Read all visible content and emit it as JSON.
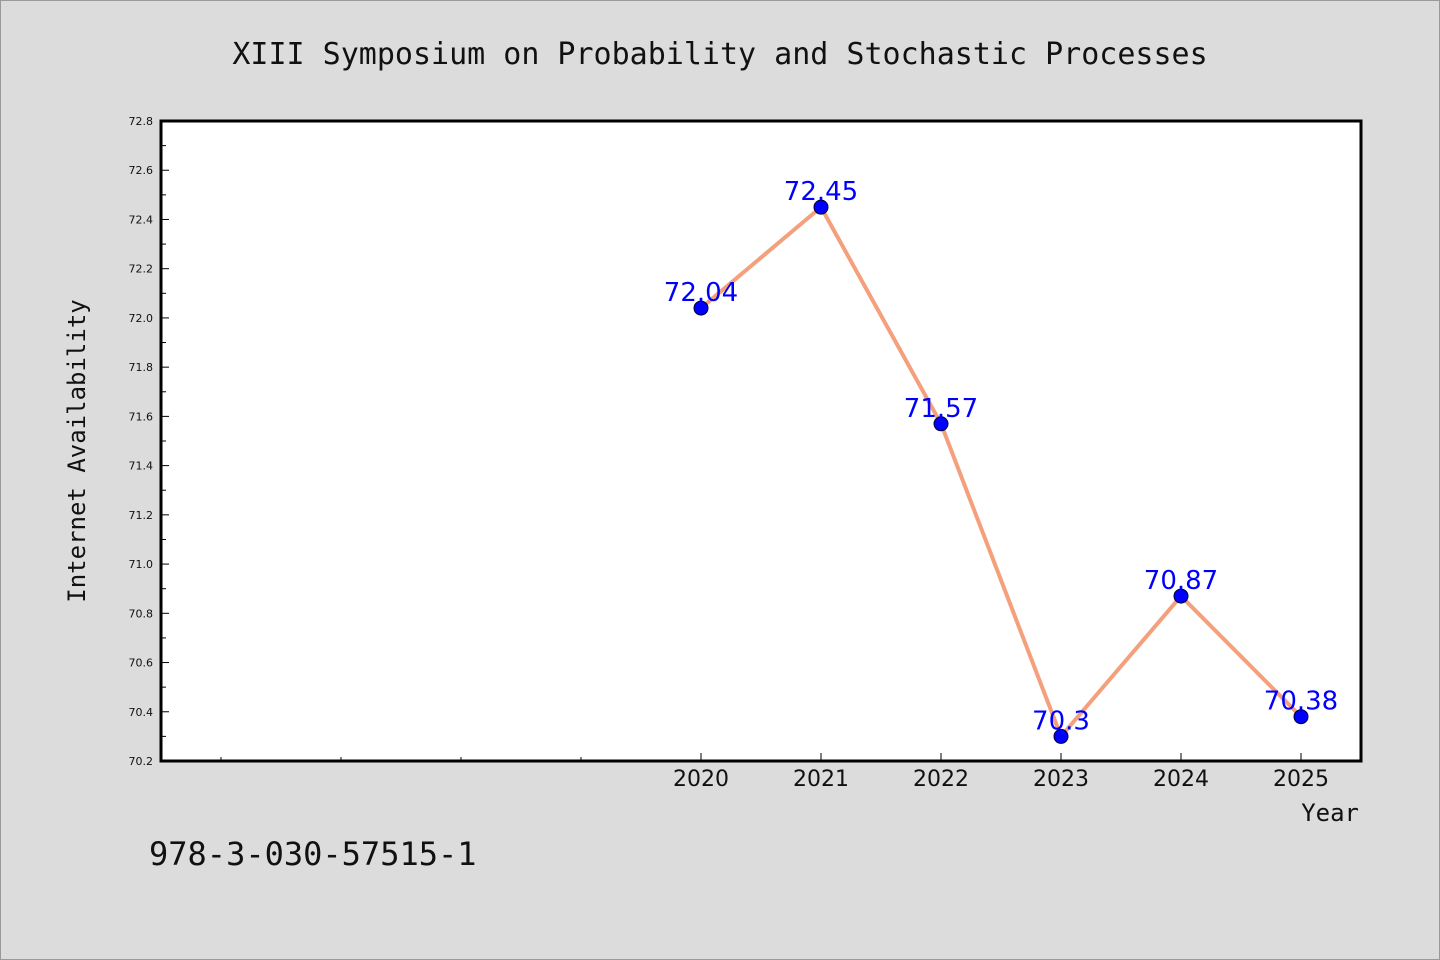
{
  "page": {
    "footer_code": "978-3-030-57515-1"
  },
  "colors": {
    "background": "#dcdcdc",
    "plot_background": "#ffffff",
    "line": "#f4a07d",
    "marker": "#0000ff",
    "data_label": "#0000ff",
    "axis": "#000000"
  },
  "chart_data": {
    "type": "line",
    "title": "XIII Symposium on Probability and Stochastic Processes",
    "xlabel": "Year",
    "ylabel": "Internet Availability",
    "x": [
      2020,
      2021,
      2022,
      2023,
      2024,
      2025
    ],
    "x_tick_labels": [
      "2020",
      "2021",
      "2022",
      "2023",
      "2024",
      "2025"
    ],
    "xlim": [
      2015.5,
      2025.5
    ],
    "series": [
      {
        "values": [
          72.04,
          72.45,
          71.57,
          70.3,
          70.87,
          70.38
        ],
        "data_labels": [
          "72.04",
          "72.45",
          "71.57",
          "70.3",
          "70.87",
          "70.38"
        ]
      }
    ],
    "ylim": [
      70.2,
      72.8
    ],
    "y_ticks": [
      "70.2",
      "70.4",
      "70.6",
      "70.8",
      "71.0",
      "71.2",
      "71.4",
      "71.6",
      "71.8",
      "72.0",
      "72.2",
      "72.4",
      "72.6",
      "72.8"
    ],
    "grid": false,
    "legend": "none"
  }
}
